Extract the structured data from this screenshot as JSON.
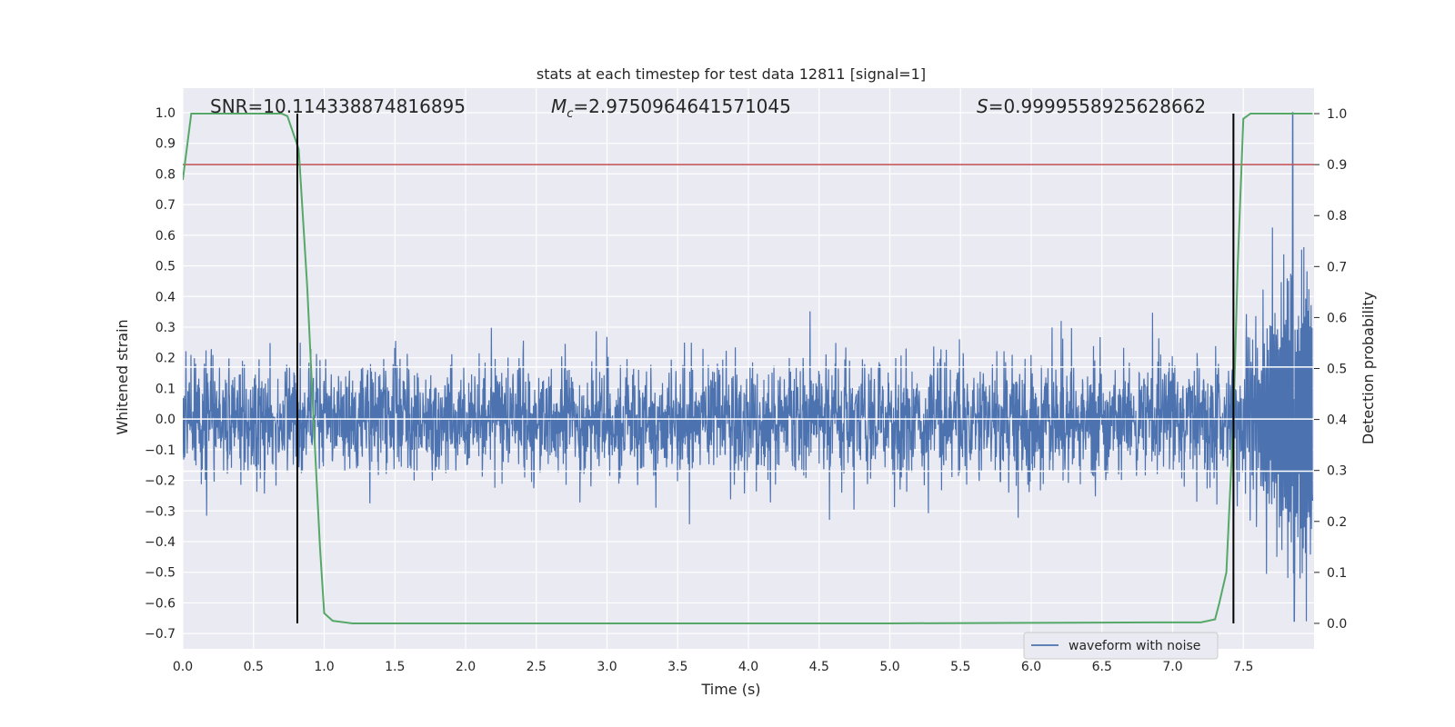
{
  "chart_data": {
    "type": "line",
    "title": "stats at each timestep for test data 12811 [signal=1]",
    "xlabel": "Time (s)",
    "ylabel_left": "Whitened strain",
    "ylabel_right": "Detection probability",
    "xlim": [
      0.0,
      8.0
    ],
    "ylim_left": [
      -0.75,
      1.08
    ],
    "ylim_right": [
      -0.05,
      1.05
    ],
    "x_ticks": [
      0.0,
      0.5,
      1.0,
      1.5,
      2.0,
      2.5,
      3.0,
      3.5,
      4.0,
      4.5,
      5.0,
      5.5,
      6.0,
      6.5,
      7.0,
      7.5
    ],
    "x_tick_labels": [
      "0.0",
      "0.5",
      "1.0",
      "1.5",
      "2.0",
      "2.5",
      "3.0",
      "3.5",
      "4.0",
      "4.5",
      "5.0",
      "5.5",
      "6.0",
      "6.5",
      "7.0",
      "7.5"
    ],
    "y_left_ticks": [
      -0.7,
      -0.6,
      -0.5,
      -0.4,
      -0.3,
      -0.2,
      -0.1,
      0.0,
      0.1,
      0.2,
      0.3,
      0.4,
      0.5,
      0.6,
      0.7,
      0.8,
      0.9,
      1.0
    ],
    "y_left_tick_labels": [
      "−0.7",
      "−0.6",
      "−0.5",
      "−0.4",
      "−0.3",
      "−0.2",
      "−0.1",
      "0.0",
      "0.1",
      "0.2",
      "0.3",
      "0.4",
      "0.5",
      "0.6",
      "0.7",
      "0.8",
      "0.9",
      "1.0"
    ],
    "y_right_ticks": [
      0.0,
      0.1,
      0.2,
      0.3,
      0.4,
      0.5,
      0.6,
      0.7,
      0.8,
      0.9,
      1.0
    ],
    "y_right_tick_labels": [
      "0.0",
      "0.1",
      "0.2",
      "0.3",
      "0.4",
      "0.5",
      "0.6",
      "0.7",
      "0.8",
      "0.9",
      "1.0"
    ],
    "grid": true,
    "legend": {
      "position": "lower-right",
      "entries": [
        "waveform with noise"
      ]
    },
    "annotations": {
      "snr": "SNR=10.114338874816895",
      "mc_symbol": "M",
      "mc_sub": "c",
      "mc_value": "=2.9750964641571045",
      "s_symbol": "S",
      "s_value": "=0.9999558925628662"
    },
    "waveform": {
      "name": "waveform with noise",
      "color": "#4c72b0",
      "t_start": 0.0,
      "t_end": 7.99,
      "noise_envelope": 0.17,
      "chirp_start": 7.3,
      "chirp_peak_time": 7.85,
      "chirp_peak_value": 1.0,
      "chirp_min_value": -0.66
    },
    "detection_probability": {
      "color": "#55a868",
      "x": [
        0.0,
        0.06,
        0.1,
        0.2,
        0.3,
        0.5,
        0.6,
        0.7,
        0.74,
        0.82,
        0.88,
        0.93,
        0.97,
        1.0,
        1.06,
        1.2,
        1.5,
        2.0,
        3.0,
        4.0,
        5.0,
        6.0,
        7.0,
        7.2,
        7.3,
        7.33,
        7.38,
        7.43,
        7.46,
        7.5,
        7.55,
        7.6,
        7.8,
        7.99
      ],
      "y": [
        0.87,
        1.0,
        1.0,
        1.0,
        1.0,
        1.0,
        1.0,
        1.0,
        0.995,
        0.93,
        0.66,
        0.37,
        0.15,
        0.02,
        0.005,
        0.0,
        0.0,
        0.0,
        0.0,
        0.0,
        0.0,
        0.001,
        0.002,
        0.002,
        0.008,
        0.04,
        0.1,
        0.4,
        0.7,
        0.99,
        1.0,
        1.0,
        1.0,
        1.0
      ]
    },
    "threshold_line": {
      "value": 0.9,
      "axis": "right",
      "color": "#c44e52"
    },
    "vertical_lines": {
      "x": [
        0.81,
        7.43
      ],
      "color": "#000000"
    },
    "hlines_left_white": [
      0.17,
      0.0,
      -0.17
    ]
  }
}
